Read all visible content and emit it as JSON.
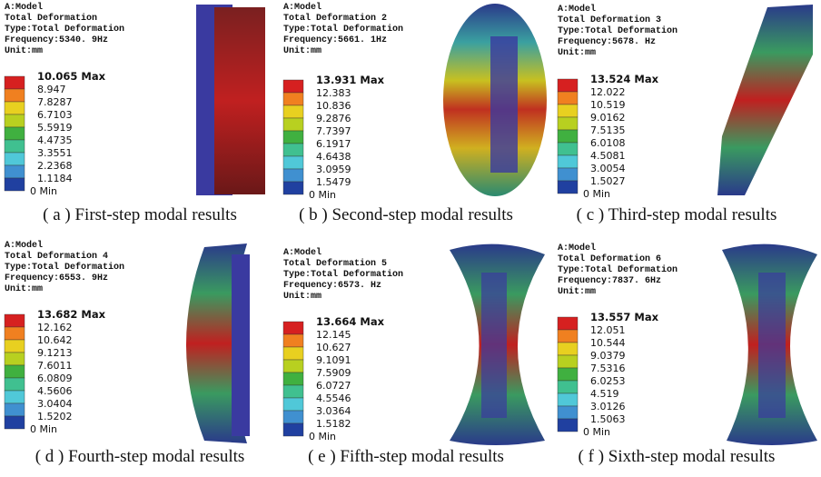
{
  "panels": [
    {
      "header": [
        "A:Model",
        "Total Deformation",
        "Type:Total Deformation",
        "Frequency:5340. 9Hz",
        "Unit:mm"
      ],
      "legend": [
        "10.065 Max",
        "8.947",
        "7.8287",
        "6.7103",
        "5.5919",
        "4.4735",
        "3.3551",
        "2.2368",
        "1.1184",
        "0 Min"
      ],
      "caption": "( a ) First-step modal results"
    },
    {
      "header": [
        "A:Model",
        "Total Deformation 2",
        "Type:Total Deformation",
        "Frequency:5661. 1Hz",
        "Unit:mm"
      ],
      "legend": [
        "13.931 Max",
        "12.383",
        "10.836",
        "9.2876",
        "7.7397",
        "6.1917",
        "4.6438",
        "3.0959",
        "1.5479",
        "0 Min"
      ],
      "caption": "( b ) Second-step modal results"
    },
    {
      "header": [
        "A:Model",
        "Total Deformation 3",
        "Type:Total Deformation",
        "Frequency:5678. Hz",
        "Unit:mm"
      ],
      "legend": [
        "13.524 Max",
        "12.022",
        "10.519",
        "9.0162",
        "7.5135",
        "6.0108",
        "4.5081",
        "3.0054",
        "1.5027",
        "0 Min"
      ],
      "caption": "( c ) Third-step modal results"
    },
    {
      "header": [
        "A:Model",
        "Total Deformation 4",
        "Type:Total Deformation",
        "Frequency:6553. 9Hz",
        "Unit:mm"
      ],
      "legend": [
        "13.682 Max",
        "12.162",
        "10.642",
        "9.1213",
        "7.6011",
        "6.0809",
        "4.5606",
        "3.0404",
        "1.5202",
        "0 Min"
      ],
      "caption": "( d ) Fourth-step modal results"
    },
    {
      "header": [
        "A:Model",
        "Total Deformation 5",
        "Type:Total Deformation",
        "Frequency:6573. Hz",
        "Unit:mm"
      ],
      "legend": [
        "13.664 Max",
        "12.145",
        "10.627",
        "9.1091",
        "7.5909",
        "6.0727",
        "4.5546",
        "3.0364",
        "1.5182",
        "0 Min"
      ],
      "caption": "( e ) Fifth-step modal results"
    },
    {
      "header": [
        "A:Model",
        "Total Deformation 6",
        "Type:Total Deformation",
        "Frequency:7837. 6Hz",
        "Unit:mm"
      ],
      "legend": [
        "13.557 Max",
        "12.051",
        "10.544",
        "9.0379",
        "7.5316",
        "6.0253",
        "4.519",
        "3.0126",
        "1.5063",
        "0 Min"
      ],
      "caption": "( f ) Sixth-step modal results"
    }
  ]
}
